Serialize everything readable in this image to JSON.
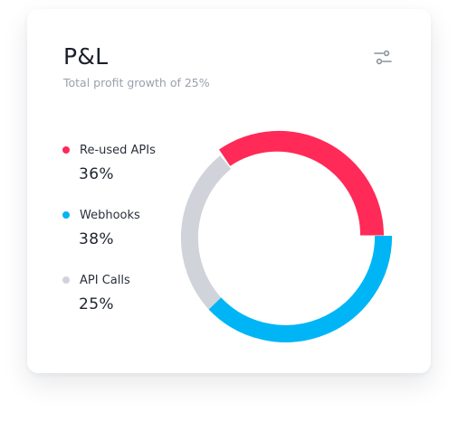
{
  "card": {
    "title": "P&L",
    "subtitle": "Total profit growth of 25%",
    "settings_icon": "sliders-icon"
  },
  "legend": [
    {
      "label": "Re-used APIs",
      "value": "36%",
      "color": "#ff2a57"
    },
    {
      "label": "Webhooks",
      "value": "38%",
      "color": "#00b5f5"
    },
    {
      "label": "API Calls",
      "value": "25%",
      "color": "#d0d3d9"
    }
  ],
  "colors": {
    "reused": "#ff2a57",
    "webhooks": "#00b5f5",
    "api_calls": "#d0d3d9",
    "text_primary": "#1b1f2a",
    "text_muted": "#9aa0ac"
  }
}
